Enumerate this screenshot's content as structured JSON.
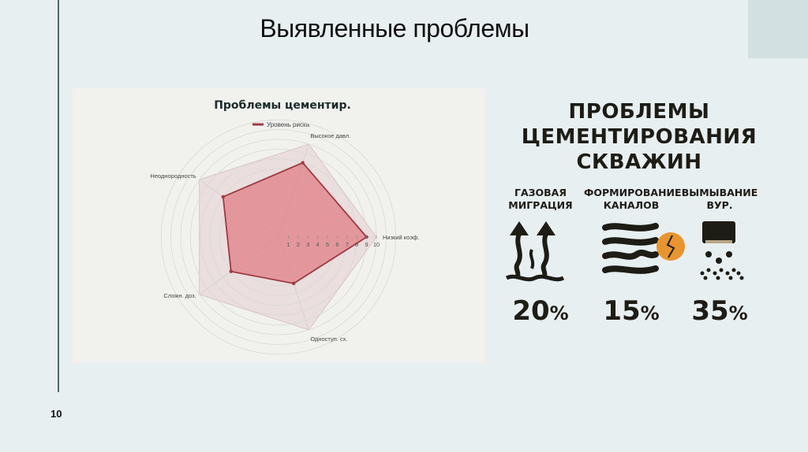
{
  "slide": {
    "title": "Выявленные проблемы",
    "page_number": "10"
  },
  "colors": {
    "background": "#e8eff1",
    "accent_line": "#4f6a6c",
    "corner_block": "#d3e0e1",
    "series_fill": "#e07f86",
    "series_stroke": "#9e3a40",
    "outer_fill": "#e9d9d9",
    "icon_dark": "#1d1c15",
    "icon_orange": "#e8952f"
  },
  "chart_data": {
    "type": "radar",
    "title": "Проблемы цементир.",
    "legend": [
      "Уровень риска"
    ],
    "legend_position": "top",
    "categories": [
      "Низкий коэф.",
      "Высокое давл.",
      "Неоднородность",
      "Сложн. доз.",
      "Одноступ. сх."
    ],
    "series": [
      {
        "name": "Уровень риска",
        "values": [
          9,
          8,
          7,
          6,
          5
        ]
      }
    ],
    "max_envelope": [
      10,
      10,
      10,
      10,
      10
    ],
    "radial_ticks": [
      "1",
      "2",
      "3",
      "4",
      "5",
      "6",
      "7",
      "8",
      "9",
      "10"
    ],
    "rlim": [
      0,
      10
    ],
    "grid": "circular"
  },
  "infographic": {
    "title_lines": [
      "ПРОБЛЕМЫ",
      "ЦЕМЕНТИРОВАНИЯ",
      "СКВАЖИН"
    ],
    "items": [
      {
        "label_lines": [
          "ГАЗОВАЯ",
          "МИГРАЦИЯ"
        ],
        "icon": "gas-migration-arrows-icon",
        "value": "20",
        "unit": "%"
      },
      {
        "label_lines": [
          "ФОРМИРОВАНИЕ",
          "КАНАЛОВ"
        ],
        "icon": "channel-waves-icon",
        "value": "15",
        "unit": "%"
      },
      {
        "label_lines": [
          "ВЫМЫВАНИЕ",
          "ВУР."
        ],
        "icon": "washout-drops-icon",
        "value": "35",
        "unit": "%"
      }
    ]
  }
}
